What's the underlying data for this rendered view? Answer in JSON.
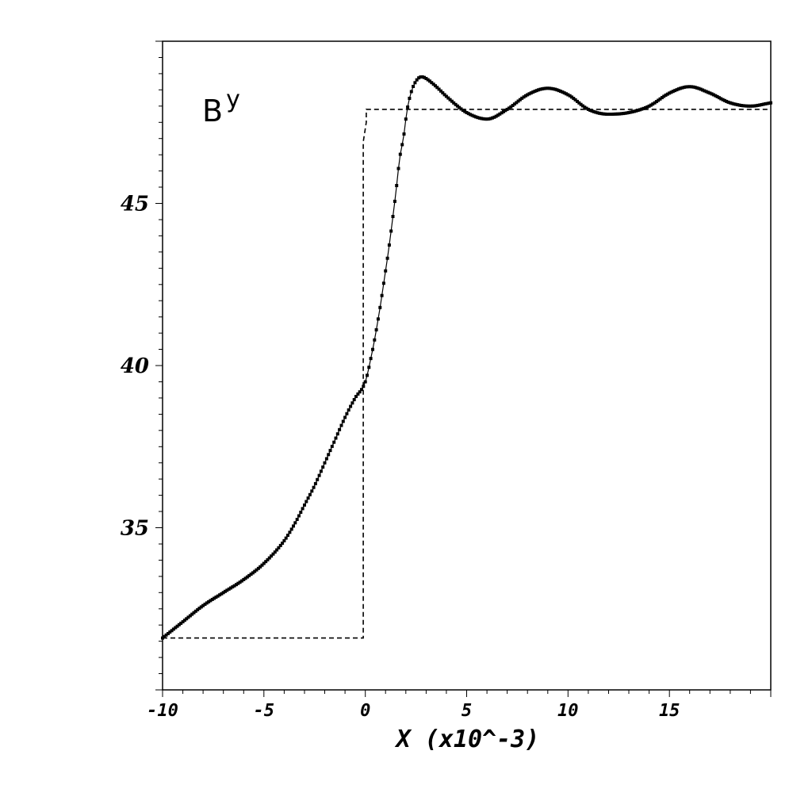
{
  "chart_data": {
    "type": "line",
    "title": "",
    "xlabel": "X (x10^-3)",
    "ylabel": "",
    "annotation": {
      "base": "B",
      "superscript": "y"
    },
    "xlim": [
      -10,
      20
    ],
    "ylim": [
      30,
      50
    ],
    "x_ticks": [
      {
        "value": -10,
        "label": "-10"
      },
      {
        "value": -5,
        "label": "-5"
      },
      {
        "value": 0,
        "label": "0"
      },
      {
        "value": 5,
        "label": "5"
      },
      {
        "value": 10,
        "label": "10"
      },
      {
        "value": 15,
        "label": "15"
      }
    ],
    "y_ticks": [
      {
        "value": 35,
        "label": "35"
      },
      {
        "value": 40,
        "label": "40"
      },
      {
        "value": 45,
        "label": "45"
      }
    ],
    "grid": false,
    "legend": "none",
    "series": [
      {
        "style": "solid-with-dots",
        "color": "#000000",
        "x": [
          -10,
          -9,
          -8,
          -7,
          -6,
          -5,
          -4,
          -3.5,
          -3,
          -2.5,
          -2,
          -1.5,
          -1,
          -0.5,
          0,
          0.3,
          0.6,
          0.9,
          1.2,
          1.5,
          1.7,
          1.9,
          2,
          2.1,
          2.3,
          2.6,
          2.8,
          3,
          3.5,
          4,
          5,
          6,
          7,
          8,
          9,
          10,
          11,
          12,
          13,
          14,
          15,
          16,
          17,
          18,
          19,
          20
        ],
        "y": [
          31.6,
          32.1,
          32.6,
          33,
          33.4,
          33.9,
          34.6,
          35.1,
          35.7,
          36.3,
          37,
          37.7,
          38.4,
          39,
          39.5,
          40.3,
          41.3,
          42.5,
          43.8,
          45.3,
          46.4,
          47.1,
          47.6,
          48,
          48.5,
          48.85,
          48.9,
          48.85,
          48.6,
          48.3,
          47.8,
          47.6,
          47.9,
          48.35,
          48.55,
          48.35,
          47.9,
          47.75,
          47.8,
          48,
          48.4,
          48.6,
          48.4,
          48.1,
          48,
          48.1
        ]
      },
      {
        "style": "dashed",
        "color": "#000000",
        "x": [
          -10,
          -0.1,
          -0.1,
          0.05,
          0.05,
          20
        ],
        "y": [
          31.6,
          31.6,
          46.9,
          47.5,
          47.9,
          47.9
        ]
      }
    ]
  }
}
